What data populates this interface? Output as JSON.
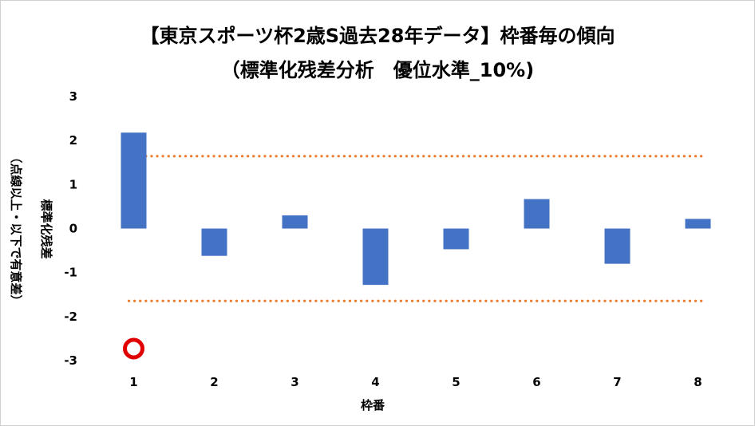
{
  "chart_data": {
    "type": "bar",
    "title": "【東京スポーツ杯2歳S過去28年データ】枠番毎の傾向",
    "subtitle": "（標準化残差分析　優位水準_10%)",
    "xlabel": "枠番",
    "ylabel": "標準化残差",
    "ylabel_note": "（点線以上・以下で有意差）",
    "categories": [
      "1",
      "2",
      "3",
      "4",
      "5",
      "6",
      "7",
      "8"
    ],
    "values": [
      2.18,
      -0.62,
      0.3,
      -1.28,
      -0.47,
      0.67,
      -0.8,
      0.22
    ],
    "ylim": [
      -3,
      3
    ],
    "yticks": [
      "3",
      "2",
      "1",
      "0",
      "-1",
      "-2",
      "-3"
    ],
    "ytick_values": [
      3,
      2,
      1,
      0,
      -1,
      -2,
      -3
    ],
    "threshold_upper": 1.645,
    "threshold_lower": -1.645,
    "highlight_category": "1",
    "colors": {
      "bar": "#4472C4",
      "threshold": "#ED7D31",
      "marker_ring": "#E00000",
      "grid": "#D9D9D9"
    },
    "grid": false,
    "legend": "none"
  }
}
